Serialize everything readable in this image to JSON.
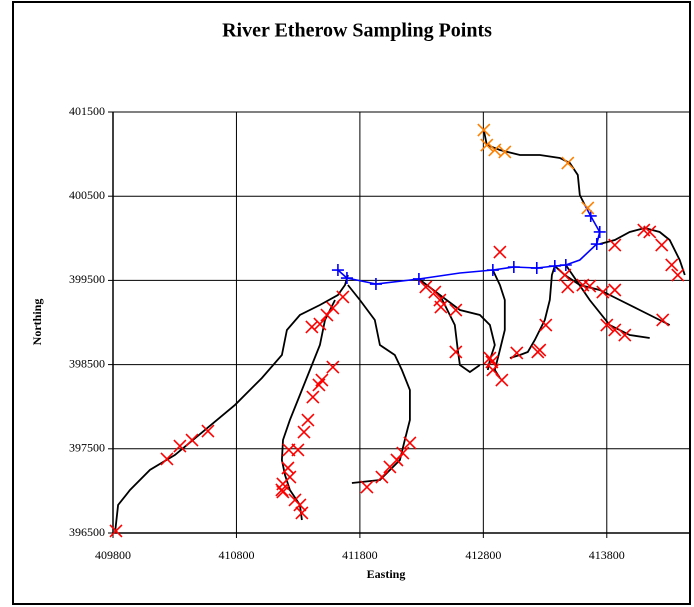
{
  "chart_data": {
    "type": "scatter",
    "title": "River Etherow Sampling Points",
    "x_label": "Easting",
    "y_label": "Northing",
    "xlim": [
      409800,
      414466
    ],
    "ylim": [
      396500,
      401500
    ],
    "xticks": [
      409800,
      410800,
      411800,
      412800,
      413800
    ],
    "yticks": [
      396500,
      397500,
      398500,
      399500,
      400500,
      401500
    ],
    "grid": true,
    "series": [
      {
        "color": "#000000",
        "mode": "line",
        "x": [
          409816,
          409841,
          409938,
          410100,
          410302,
          410545,
          410788,
          411006,
          411168,
          411209,
          411314,
          411476,
          411622,
          411679,
          411703
        ],
        "y": [
          396500,
          396833,
          397011,
          397249,
          397427,
          397724,
          398021,
          398341,
          398614,
          398911,
          399089,
          399208,
          399327,
          399445,
          399564
        ]
      },
      {
        "color": "#000000",
        "mode": "line",
        "x": [
          411598,
          411517,
          411476,
          411395,
          411314,
          411233,
          411177,
          411168,
          411193,
          411233,
          411314,
          411330
        ],
        "y": [
          399267,
          399030,
          398733,
          398436,
          398139,
          397843,
          397604,
          397367,
          397189,
          397011,
          396833,
          396654
        ]
      },
      {
        "color": "#000000",
        "mode": "line",
        "x": [
          411703,
          411800,
          411921,
          411962,
          412083,
          412140,
          412205,
          412205,
          412164,
          412124,
          411962,
          411735
        ],
        "y": [
          399445,
          399267,
          399030,
          398733,
          398614,
          398436,
          398198,
          397842,
          397604,
          397367,
          397129,
          397094
        ]
      },
      {
        "color": "#000000",
        "mode": "line",
        "x": [
          412804,
          412828,
          412934,
          413096,
          413258,
          413419,
          413500,
          413565,
          413581,
          413622
        ],
        "y": [
          401286,
          401108,
          401049,
          400989,
          400989,
          400954,
          400894,
          400752,
          400514,
          400395
        ]
      },
      {
        "color": "#000000",
        "mode": "line",
        "x": [
          413743,
          413865,
          413986,
          414108,
          414229,
          414310,
          414391,
          414432
        ],
        "y": [
          399932,
          399980,
          400075,
          400122,
          400075,
          399980,
          399742,
          399564
        ]
      },
      {
        "color": "#000000",
        "mode": "line",
        "x": [
          413379,
          413460,
          413581,
          413743,
          413905,
          414067,
          414229,
          414310
        ],
        "y": [
          399671,
          399564,
          399445,
          399386,
          399267,
          399148,
          399030,
          398970
        ]
      },
      {
        "color": "#000000",
        "mode": "line",
        "x": [
          413468,
          413662,
          413824,
          413986,
          414148
        ],
        "y": [
          399683,
          399267,
          398970,
          398851,
          398816
        ]
      },
      {
        "color": "#000000",
        "mode": "line",
        "x": [
          413379,
          413355,
          413338,
          413298,
          413217,
          413160,
          413096,
          413015
        ],
        "y": [
          399671,
          399564,
          399267,
          399030,
          398792,
          398650,
          398614,
          398578
        ]
      },
      {
        "color": "#000000",
        "mode": "line",
        "x": [
          412278,
          412448,
          412610,
          412772,
          412853,
          412893,
          412853,
          412836
        ],
        "y": [
          399517,
          399327,
          399148,
          399089,
          398970,
          398733,
          398555,
          398436
        ]
      },
      {
        "color": "#000000",
        "mode": "line",
        "x": [
          412448,
          412569,
          412593,
          412610,
          412691,
          412772
        ],
        "y": [
          399327,
          398970,
          398673,
          398495,
          398412,
          398495
        ]
      },
      {
        "color": "#000000",
        "mode": "line",
        "x": [
          412877,
          412934,
          412974,
          412974,
          412934,
          412893,
          412934
        ],
        "y": [
          399623,
          399445,
          399267,
          398911,
          398673,
          398436,
          398341
        ]
      },
      {
        "color": "#0000ff",
        "mode": "line",
        "x": [
          411622,
          411695,
          411930,
          412278,
          412610,
          412877,
          413047,
          413233,
          413379,
          413468,
          413581,
          413719,
          413743,
          413670,
          413622
        ],
        "y": [
          399623,
          399528,
          399457,
          399517,
          399588,
          399623,
          399659,
          399647,
          399671,
          399683,
          399742,
          399932,
          400075,
          400265,
          400395
        ]
      },
      {
        "color": "#0000ff",
        "mode": "markers",
        "marker": "plus",
        "x": [
          411622,
          411695,
          411930,
          412278,
          412877,
          413047,
          413233,
          413379,
          413468,
          413719,
          413743,
          413670
        ],
        "y": [
          399623,
          399528,
          399457,
          399517,
          399623,
          399659,
          399647,
          399671,
          399683,
          399932,
          400075,
          400265
        ]
      },
      {
        "color": "#ff8000",
        "mode": "markers",
        "marker": "cross",
        "x": [
          412804,
          412828,
          412893,
          412974,
          413484,
          413646
        ],
        "y": [
          401286,
          401108,
          401049,
          401025,
          400894,
          400360
        ]
      },
      {
        "color": "#ff0000",
        "mode": "markers",
        "marker": "cross",
        "x": [
          409824,
          410237,
          410342,
          410440,
          410569,
          411662,
          411581,
          411533,
          411476,
          411411,
          411581,
          411492,
          411468,
          411419,
          411379,
          411347,
          411298,
          411225,
          411217,
          411233,
          411176,
          411168,
          411176,
          411274,
          411314,
          411330,
          411857,
          411978,
          412043,
          412100,
          412148,
          412205,
          412334,
          412407,
          412448,
          412456,
          412577,
          412577,
          412853,
          412869,
          412877,
          412950,
          412934,
          413071,
          413241,
          413257,
          413306,
          413460,
          413484,
          413606,
          413662,
          413768,
          413865,
          413800,
          413865,
          413946,
          414253,
          413865,
          414100,
          414148,
          414245,
          414326,
          414375
        ],
        "y": [
          396524,
          397379,
          397533,
          397604,
          397711,
          399303,
          399172,
          399089,
          398982,
          398947,
          398471,
          398317,
          398258,
          398115,
          397842,
          397699,
          397486,
          397486,
          397272,
          397165,
          397082,
          397011,
          396987,
          396892,
          396833,
          396738,
          397046,
          397165,
          397284,
          397367,
          397450,
          397569,
          399422,
          399362,
          399267,
          399184,
          399148,
          398650,
          398578,
          398531,
          398436,
          398317,
          399837,
          398638,
          398650,
          398673,
          398970,
          399564,
          399422,
          399445,
          399433,
          399362,
          399386,
          398970,
          398911,
          398851,
          399030,
          399920,
          400098,
          400075,
          399920,
          399683,
          399564
        ]
      }
    ]
  }
}
